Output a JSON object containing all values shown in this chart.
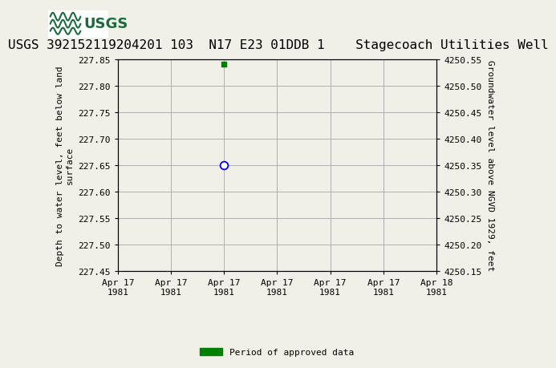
{
  "title": "USGS 392152119204201 103  N17 E23 01DDB 1    Stagecoach Utilities Well",
  "ylabel_left": "Depth to water level, feet below land\nsurface",
  "ylabel_right": "Groundwater level above NGVD 1929, feet",
  "ylim_left_top": 227.45,
  "ylim_left_bottom": 227.85,
  "ylim_right_top": 4250.55,
  "ylim_right_bottom": 4250.15,
  "yticks_left": [
    227.45,
    227.5,
    227.55,
    227.6,
    227.65,
    227.7,
    227.75,
    227.8,
    227.85
  ],
  "yticks_right": [
    4250.55,
    4250.5,
    4250.45,
    4250.4,
    4250.35,
    4250.3,
    4250.25,
    4250.2,
    4250.15
  ],
  "ytick_labels_right": [
    "4250.55",
    "4250.50",
    "4250.45",
    "4250.40",
    "4250.35",
    "4250.30",
    "4250.25",
    "4250.20",
    "4250.15"
  ],
  "data_point_x": 8,
  "data_point_y": 227.65,
  "green_dot_x": 8,
  "green_dot_y": 227.84,
  "xlim": [
    0,
    24
  ],
  "xtick_positions": [
    0,
    4,
    8,
    12,
    16,
    20,
    24
  ],
  "xtick_labels": [
    "Apr 17\n1981",
    "Apr 17\n1981",
    "Apr 17\n1981",
    "Apr 17\n1981",
    "Apr 17\n1981",
    "Apr 17\n1981",
    "Apr 18\n1981"
  ],
  "legend_label": "Period of approved data",
  "legend_color": "#008000",
  "bg_color": "#f0f0e8",
  "header_bg": "#1a6b3c",
  "grid_color": "#b0b0b0",
  "plot_bg": "#f0f0e8",
  "title_fontsize": 11.5,
  "tick_fontsize": 8,
  "axis_label_fontsize": 8
}
